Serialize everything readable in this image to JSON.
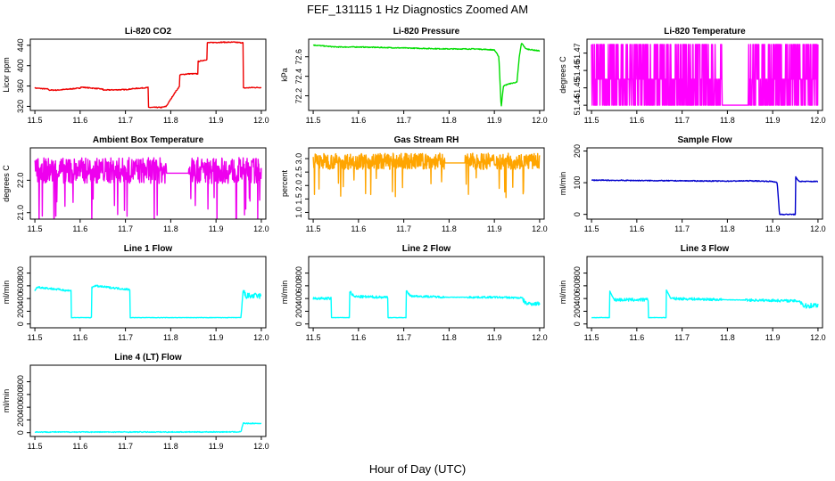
{
  "figure": {
    "title": "FEF_131115  1 Hz Diagnostics Zoomed AM",
    "xlabel": "Hour of Day (UTC)"
  },
  "chart_data": [
    {
      "id": "co2",
      "type": "line",
      "title": "Li-820 CO2",
      "ylabel": "Licor ppm",
      "color": "#ee0000",
      "xlim": [
        11.49,
        12.01
      ],
      "ylim": [
        312,
        452
      ],
      "xticks": [
        11.5,
        11.6,
        11.7,
        11.8,
        11.9,
        12.0
      ],
      "xtick_labels": [
        "11.5",
        "11.6",
        "11.7",
        "11.8",
        "11.9",
        "12.0"
      ],
      "yticks": [
        320,
        360,
        400,
        440
      ],
      "ytick_labels": [
        "320",
        "360",
        "400",
        "440"
      ],
      "series": [
        {
          "x": [
            11.5,
            11.53,
            11.53,
            11.55,
            11.6,
            11.6,
            11.65,
            11.65,
            11.7,
            11.72,
            11.75,
            11.75,
            11.78,
            11.79,
            11.81,
            11.82,
            11.82,
            11.84,
            11.86,
            11.86,
            11.88,
            11.88,
            11.91,
            11.94,
            11.96,
            11.96,
            11.98,
            12.0
          ],
          "y": [
            356,
            354,
            352,
            352,
            356,
            358,
            354,
            352,
            353,
            355,
            357,
            318,
            318,
            320,
            348,
            360,
            382,
            384,
            384,
            408,
            412,
            445,
            446,
            446,
            445,
            356,
            357,
            357
          ]
        }
      ]
    },
    {
      "id": "pressure",
      "type": "line",
      "title": "Li-820 Pressure",
      "ylabel": "kPa",
      "color": "#00dd00",
      "xlim": [
        11.49,
        12.01
      ],
      "ylim": [
        72.05,
        72.78
      ],
      "xticks": [
        11.5,
        11.6,
        11.7,
        11.8,
        11.9,
        12.0
      ],
      "xtick_labels": [
        "11.5",
        "11.6",
        "11.7",
        "11.8",
        "11.9",
        "12.0"
      ],
      "yticks": [
        72.2,
        72.4,
        72.6
      ],
      "ytick_labels": [
        "72.2",
        "72.4",
        "72.6"
      ],
      "series": [
        {
          "x": [
            11.5,
            11.55,
            11.6,
            11.7,
            11.8,
            11.86,
            11.9,
            11.91,
            11.915,
            11.92,
            11.93,
            11.95,
            11.955,
            11.96,
            11.97,
            12.0
          ],
          "y": [
            72.72,
            72.7,
            72.7,
            72.69,
            72.68,
            72.68,
            72.67,
            72.6,
            72.08,
            72.3,
            72.32,
            72.34,
            72.6,
            72.74,
            72.68,
            72.66
          ]
        }
      ]
    },
    {
      "id": "temperature",
      "type": "line",
      "title": "Li-820 Temperature",
      "ylabel": "degrees C",
      "color": "#ff00ff",
      "xlim": [
        11.49,
        12.01
      ],
      "ylim": [
        51.437,
        51.478
      ],
      "xticks": [
        11.5,
        11.6,
        11.7,
        11.8,
        11.9,
        12.0
      ],
      "xtick_labels": [
        "11.5",
        "11.6",
        "11.7",
        "11.8",
        "11.9",
        "12.0"
      ],
      "yticks": [
        51.44,
        51.45,
        51.46,
        51.47
      ],
      "ytick_labels": [
        "51.44",
        "51.45",
        "51.46",
        "51.47"
      ],
      "levels": [
        51.44,
        51.455,
        51.475
      ],
      "quiet_range": [
        11.79,
        11.845
      ],
      "gap_range": [
        11.79,
        11.845
      ]
    },
    {
      "id": "ambient",
      "type": "line",
      "title": "Ambient Box Temperature",
      "ylabel": "degrees C",
      "color": "#ee00ee",
      "xlim": [
        11.49,
        12.01
      ],
      "ylim": [
        20.8,
        23.0
      ],
      "xticks": [
        11.5,
        11.6,
        11.7,
        11.8,
        11.9,
        12.0
      ],
      "xtick_labels": [
        "11.5",
        "11.6",
        "11.7",
        "11.8",
        "11.9",
        "12.0"
      ],
      "yticks": [
        21.0,
        22.0
      ],
      "ytick_labels": [
        "21.0",
        "22.0"
      ],
      "center": 22.3,
      "spread": 0.4,
      "gap_range": [
        11.79,
        11.84
      ]
    },
    {
      "id": "rh",
      "type": "line",
      "title": "Gas Stream RH",
      "ylabel": "percent",
      "color": "#ffa500",
      "xlim": [
        11.49,
        12.01
      ],
      "ylim": [
        0.75,
        3.4
      ],
      "xticks": [
        11.5,
        11.6,
        11.7,
        11.8,
        11.9,
        12.0
      ],
      "xtick_labels": [
        "11.5",
        "11.6",
        "11.7",
        "11.8",
        "11.9",
        "12.0"
      ],
      "yticks": [
        1.0,
        1.5,
        2.0,
        2.5,
        3.0
      ],
      "ytick_labels": [
        "1.0",
        "1.5",
        "2.0",
        "2.5",
        "3.0"
      ],
      "center": 2.9,
      "spread": 0.3,
      "gap_range": [
        11.79,
        11.835
      ]
    },
    {
      "id": "sampleflow",
      "type": "line",
      "title": "Sample Flow",
      "ylabel": "ml/min",
      "color": "#0000cc",
      "xlim": [
        11.49,
        12.01
      ],
      "ylim": [
        -15,
        210
      ],
      "xticks": [
        11.5,
        11.6,
        11.7,
        11.8,
        11.9,
        12.0
      ],
      "xtick_labels": [
        "11.5",
        "11.6",
        "11.7",
        "11.8",
        "11.9",
        "12.0"
      ],
      "yticks": [
        0,
        100,
        200
      ],
      "ytick_labels": [
        "0",
        "100",
        "200"
      ],
      "series": [
        {
          "x": [
            11.5,
            11.6,
            11.7,
            11.8,
            11.85,
            11.9,
            11.91,
            11.915,
            11.92,
            11.95,
            11.95,
            11.955,
            11.96,
            12.0
          ],
          "y": [
            108,
            107,
            106,
            105,
            106,
            104,
            100,
            0,
            0,
            0,
            120,
            108,
            104,
            104
          ]
        }
      ]
    },
    {
      "id": "line1",
      "type": "line",
      "title": "Line 1 Flow",
      "ylabel": "ml/min",
      "color": "#00ffff",
      "xlim": [
        11.49,
        12.01
      ],
      "ylim": [
        -60,
        1060
      ],
      "xticks": [
        11.5,
        11.6,
        11.7,
        11.8,
        11.9,
        12.0
      ],
      "xtick_labels": [
        "11.5",
        "11.6",
        "11.7",
        "11.8",
        "11.9",
        "12.0"
      ],
      "yticks": [
        0,
        200,
        400,
        600,
        800
      ],
      "ytick_labels": [
        "0",
        "200",
        "400",
        "600",
        "800"
      ],
      "series": [
        {
          "x": [
            11.5,
            11.505,
            11.58,
            11.58,
            11.625,
            11.625,
            11.63,
            11.71,
            11.71,
            11.8,
            11.9,
            11.955,
            11.96,
            11.965,
            12.0
          ],
          "y": [
            520,
            580,
            520,
            100,
            100,
            560,
            600,
            540,
            100,
            100,
            100,
            100,
            540,
            440,
            440
          ]
        }
      ],
      "noise": [
        [
          11.5,
          11.58,
          30
        ],
        [
          11.625,
          11.71,
          30
        ],
        [
          11.96,
          12.0,
          90
        ]
      ]
    },
    {
      "id": "line2",
      "type": "line",
      "title": "Line 2 Flow",
      "ylabel": "ml/min",
      "color": "#00ffff",
      "xlim": [
        11.49,
        12.01
      ],
      "ylim": [
        -60,
        1060
      ],
      "xticks": [
        11.5,
        11.6,
        11.7,
        11.8,
        11.9,
        12.0
      ],
      "xtick_labels": [
        "11.5",
        "11.6",
        "11.7",
        "11.8",
        "11.9",
        "12.0"
      ],
      "yticks": [
        0,
        200,
        400,
        600,
        800
      ],
      "ytick_labels": [
        "0",
        "200",
        "400",
        "600",
        "800"
      ],
      "series": [
        {
          "x": [
            11.5,
            11.54,
            11.54,
            11.58,
            11.58,
            11.59,
            11.665,
            11.665,
            11.705,
            11.705,
            11.715,
            11.8,
            11.9,
            11.96,
            11.97,
            12.0
          ],
          "y": [
            400,
            400,
            100,
            100,
            520,
            430,
            420,
            100,
            100,
            520,
            440,
            420,
            420,
            410,
            320,
            320
          ]
        }
      ],
      "noise": [
        [
          11.5,
          11.54,
          40
        ],
        [
          11.58,
          11.665,
          40
        ],
        [
          11.705,
          11.79,
          30
        ],
        [
          11.84,
          11.96,
          30
        ],
        [
          11.96,
          12.0,
          60
        ]
      ]
    },
    {
      "id": "line3",
      "type": "line",
      "title": "Line 3 Flow",
      "ylabel": "ml/min",
      "color": "#00ffff",
      "xlim": [
        11.49,
        12.01
      ],
      "ylim": [
        -60,
        1060
      ],
      "xticks": [
        11.5,
        11.6,
        11.7,
        11.8,
        11.9,
        12.0
      ],
      "xtick_labels": [
        "11.5",
        "11.6",
        "11.7",
        "11.8",
        "11.9",
        "12.0"
      ],
      "yticks": [
        0,
        200,
        400,
        600,
        800
      ],
      "ytick_labels": [
        "0",
        "200",
        "400",
        "600",
        "800"
      ],
      "series": [
        {
          "x": [
            11.5,
            11.54,
            11.54,
            11.55,
            11.625,
            11.625,
            11.665,
            11.665,
            11.675,
            11.8,
            11.9,
            11.96,
            11.97,
            12.0
          ],
          "y": [
            100,
            100,
            520,
            380,
            380,
            100,
            100,
            540,
            400,
            380,
            370,
            360,
            280,
            300
          ]
        }
      ],
      "noise": [
        [
          11.55,
          11.625,
          50
        ],
        [
          11.675,
          11.79,
          40
        ],
        [
          11.84,
          11.96,
          40
        ],
        [
          11.96,
          12.0,
          80
        ]
      ]
    },
    {
      "id": "line4",
      "type": "line",
      "title": "Line 4 (LT) Flow",
      "ylabel": "ml/min",
      "color": "#00ffff",
      "xlim": [
        11.49,
        12.01
      ],
      "ylim": [
        -60,
        1060
      ],
      "xticks": [
        11.5,
        11.6,
        11.7,
        11.8,
        11.9,
        12.0
      ],
      "xtick_labels": [
        "11.5",
        "11.6",
        "11.7",
        "11.8",
        "11.9",
        "12.0"
      ],
      "yticks": [
        0,
        200,
        400,
        600,
        800
      ],
      "ytick_labels": [
        "0",
        "200",
        "400",
        "600",
        "800"
      ],
      "series": [
        {
          "x": [
            11.5,
            11.8,
            11.95,
            11.955,
            11.96,
            11.965,
            12.0
          ],
          "y": [
            10,
            10,
            12,
            14,
            150,
            145,
            145
          ]
        }
      ]
    }
  ]
}
